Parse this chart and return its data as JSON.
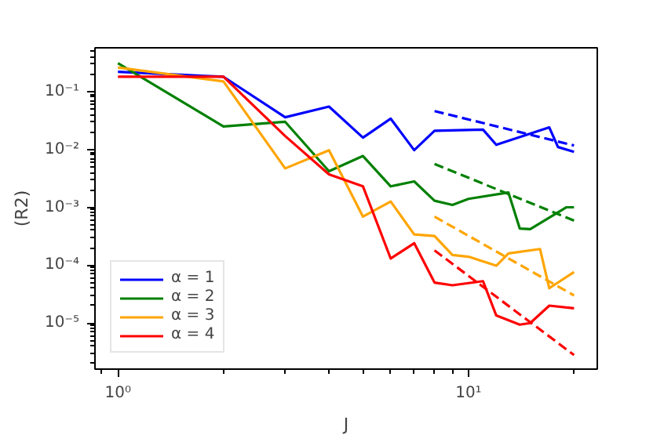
{
  "chart_data": {
    "type": "line",
    "xlabel": "J",
    "ylabel": "(R2)",
    "log": "xy",
    "grid": false,
    "legend": "bottom left",
    "xlim": [
      0.86,
      23.3
    ],
    "ylim": [
      1.6e-06,
      0.57
    ],
    "xticks": [
      {
        "value": 1,
        "label": "10⁰"
      },
      {
        "value": 10,
        "label": "10¹"
      }
    ],
    "yticks": [
      {
        "value": 1e-05,
        "label": "10⁻⁵"
      },
      {
        "value": 0.0001,
        "label": "10⁻⁴"
      },
      {
        "value": 0.001,
        "label": "10⁻³"
      },
      {
        "value": 0.01,
        "label": "10⁻²"
      },
      {
        "value": 0.1,
        "label": "10⁻¹"
      }
    ],
    "series": [
      {
        "name": "α = 1",
        "color": "#0000ff",
        "x": [
          1,
          2,
          3,
          4,
          5,
          6,
          7,
          8,
          11,
          12,
          17,
          18,
          20
        ],
        "values": [
          0.22,
          0.18,
          0.036,
          0.055,
          0.016,
          0.034,
          0.0097,
          0.021,
          0.022,
          0.012,
          0.024,
          0.011,
          0.0091
        ]
      },
      {
        "name": "α = 2",
        "color": "#008000",
        "x": [
          1,
          2,
          3,
          4,
          5,
          6,
          7,
          8,
          9,
          10,
          13,
          14,
          15,
          19,
          20
        ],
        "values": [
          0.31,
          0.025,
          0.03,
          0.0042,
          0.0077,
          0.0023,
          0.0028,
          0.0013,
          0.0011,
          0.0014,
          0.0018,
          0.00043,
          0.00042,
          0.001,
          0.001
        ]
      },
      {
        "name": "α = 3",
        "color": "#ffa500",
        "x": [
          1,
          2,
          3,
          4,
          5,
          6,
          7,
          8,
          9,
          10,
          12,
          13,
          16,
          17,
          20
        ],
        "values": [
          0.26,
          0.15,
          0.0047,
          0.0097,
          0.00069,
          0.00126,
          0.00034,
          0.00032,
          0.00015,
          0.00014,
          9.8e-05,
          0.00016,
          0.00019,
          4e-05,
          7.6e-05
        ]
      },
      {
        "name": "α = 4",
        "color": "#ff0000",
        "x": [
          1,
          2,
          3,
          4,
          5,
          6,
          7,
          8,
          9,
          11,
          12,
          14,
          15,
          17,
          20
        ],
        "values": [
          0.18,
          0.18,
          0.017,
          0.0037,
          0.0023,
          0.00013,
          0.00024,
          5e-05,
          4.5e-05,
          5.3e-05,
          1.35e-05,
          9.4e-06,
          1e-05,
          2e-05,
          1.8e-05
        ]
      },
      {
        "color": "#0000ff",
        "line_style": "dashed",
        "x": [
          8,
          20
        ],
        "values": [
          0.046,
          0.0117
        ]
      },
      {
        "color": "#008000",
        "line_style": "dashed",
        "x": [
          8,
          20
        ],
        "values": [
          0.0056,
          0.00059
        ]
      },
      {
        "color": "#ffa500",
        "line_style": "dashed",
        "x": [
          8,
          20
        ],
        "values": [
          0.00069,
          3e-05
        ]
      },
      {
        "color": "#ff0000",
        "line_style": "dashed",
        "x": [
          8,
          20
        ],
        "values": [
          0.00018,
          2.8e-06
        ]
      }
    ]
  }
}
